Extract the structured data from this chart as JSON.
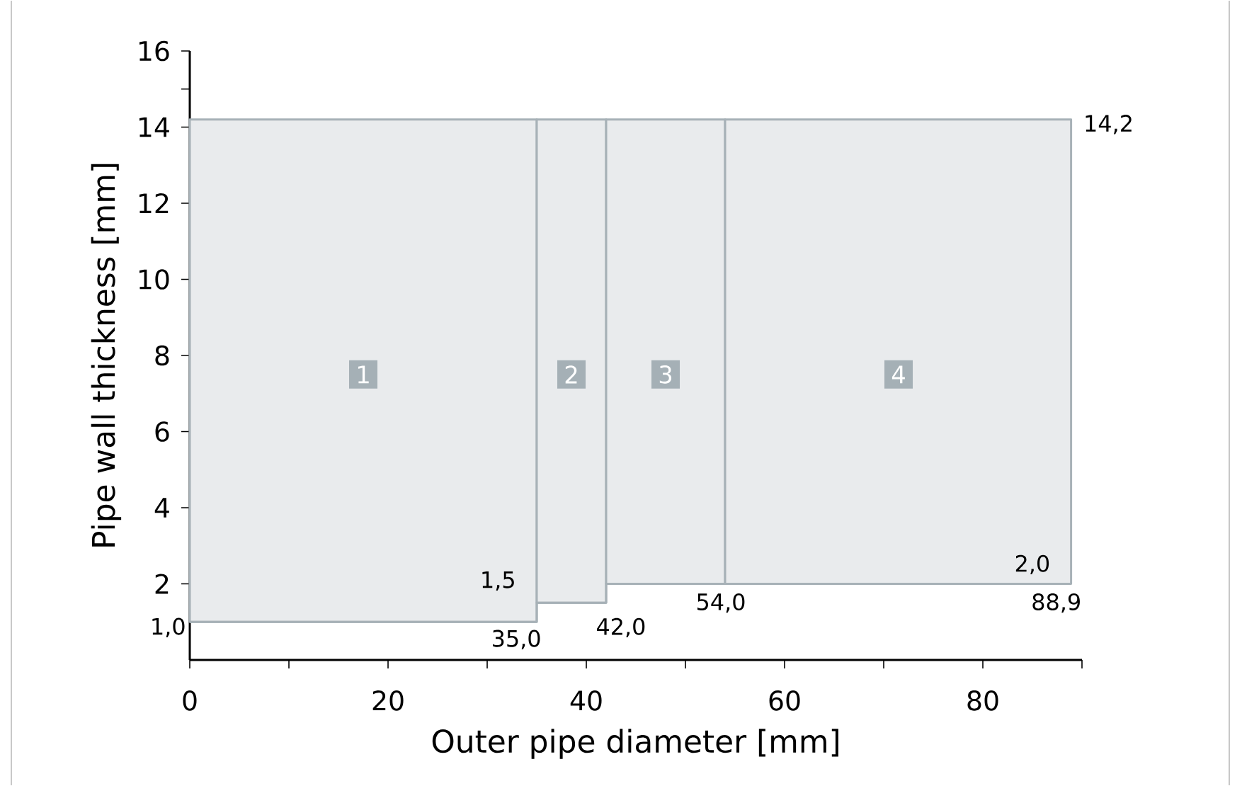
{
  "chart_data": {
    "type": "step",
    "xlabel": "Outer pipe diameter [mm]",
    "ylabel": "Pipe wall thickness [mm]",
    "series": [
      {
        "color": "#a7b1b7",
        "x": [
          0,
          35,
          42,
          54,
          88.9
        ],
        "values": [
          1.0,
          1.5,
          2.0,
          2.0,
          2.0
        ],
        "lower": [
          1.0,
          1.5,
          2.0,
          2.0,
          2.0
        ],
        "upper": [
          14.2,
          14.2,
          14.2,
          14.2,
          14.2
        ]
      }
    ],
    "xlim": [
      0,
      90
    ],
    "ylim": [
      0,
      16
    ],
    "xticks": [
      0,
      {
        "value": 10,
        "label": null
      },
      20,
      {
        "value": 30,
        "label": null
      },
      40,
      {
        "value": 50,
        "label": null
      },
      60,
      {
        "value": 70,
        "label": null
      },
      80,
      {
        "value": 90,
        "label": null
      }
    ],
    "yticks": [
      2,
      4,
      6,
      8,
      10,
      12,
      14,
      {
        "value": 15,
        "label": null
      },
      16
    ],
    "annotations": [
      {
        "text": "1,0",
        "x": 0,
        "y": 1.0
      },
      {
        "text": "1,5",
        "x": 35,
        "y": 1.5
      },
      {
        "text": "2,0",
        "x": 88.9,
        "y": 2.0
      },
      {
        "text": "14,2",
        "x": 88.9,
        "y": 14.2
      },
      {
        "text": "35,0",
        "x": 35,
        "y": 1.0
      },
      {
        "text": "42,0",
        "x": 42,
        "y": 1.5
      },
      {
        "text": "54,0",
        "x": 54,
        "y": 2.0
      },
      {
        "text": "88,9",
        "x": 88.9,
        "y": 2.0
      },
      {
        "text": "1",
        "x": 17.5,
        "y": 7.5
      },
      {
        "text": "2",
        "x": 38.5,
        "y": 7.5
      },
      {
        "text": "3",
        "x": 48,
        "y": 7.5
      },
      {
        "text": "4",
        "x": 71.5,
        "y": 7.5
      }
    ]
  }
}
